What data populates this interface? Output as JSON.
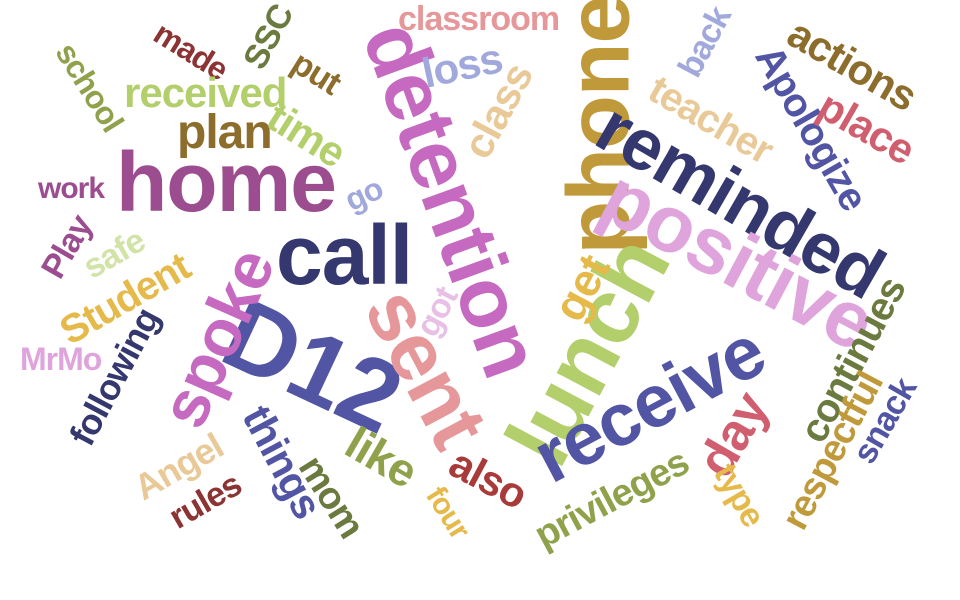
{
  "words": [
    {
      "text": "phone",
      "color": "#c09a3a"
    },
    {
      "text": "detention",
      "color": "#c56ac0"
    },
    {
      "text": "home",
      "color": "#9b4d8f"
    },
    {
      "text": "reminded",
      "color": "#34386e"
    },
    {
      "text": "positive",
      "color": "#dfa4dc"
    },
    {
      "text": "call",
      "color": "#34386e"
    },
    {
      "text": "lunch",
      "color": "#b3cf6b"
    },
    {
      "text": "D12",
      "color": "#5155a3"
    },
    {
      "text": "sent",
      "color": "#e5979a"
    },
    {
      "text": "receive",
      "color": "#5155a3"
    },
    {
      "text": "spoke",
      "color": "#c56ac0"
    },
    {
      "text": "classroom",
      "color": "#e5979a"
    },
    {
      "text": "made",
      "color": "#8c3333"
    },
    {
      "text": "SSC",
      "color": "#6b7a3e"
    },
    {
      "text": "school",
      "color": "#8fa24b"
    },
    {
      "text": "received",
      "color": "#b3cf6b"
    },
    {
      "text": "plan",
      "color": "#8c6d2c"
    },
    {
      "text": "put",
      "color": "#8c6d2c"
    },
    {
      "text": "loss",
      "color": "#a1a8dc"
    },
    {
      "text": "time",
      "color": "#b3cf6b"
    },
    {
      "text": "class",
      "color": "#e9c997"
    },
    {
      "text": "back",
      "color": "#a1a8dc"
    },
    {
      "text": "actions",
      "color": "#8c6d2c"
    },
    {
      "text": "teacher",
      "color": "#e9c997"
    },
    {
      "text": "Apologize",
      "color": "#5155a3"
    },
    {
      "text": "place",
      "color": "#d05e6f"
    },
    {
      "text": "work",
      "color": "#9b4d8f"
    },
    {
      "text": "go",
      "color": "#a1a8dc"
    },
    {
      "text": "Play",
      "color": "#9b4d8f"
    },
    {
      "text": "safe",
      "color": "#d1e3a6"
    },
    {
      "text": "Student",
      "color": "#e5b94a"
    },
    {
      "text": "get",
      "color": "#e5b94a"
    },
    {
      "text": "got",
      "color": "#e8bfe5"
    },
    {
      "text": "MrMo",
      "color": "#dfa4dc"
    },
    {
      "text": "following",
      "color": "#34386e"
    },
    {
      "text": "continues",
      "color": "#6b7a3e"
    },
    {
      "text": "snack",
      "color": "#5155a3"
    },
    {
      "text": "day",
      "color": "#d05e6f"
    },
    {
      "text": "respectful",
      "color": "#c09a3a"
    },
    {
      "text": "things",
      "color": "#5155a3"
    },
    {
      "text": "Angel",
      "color": "#e9c997"
    },
    {
      "text": "like",
      "color": "#8fa24b"
    },
    {
      "text": "mom",
      "color": "#6b7a3e"
    },
    {
      "text": "rules",
      "color": "#8c3333"
    },
    {
      "text": "also",
      "color": "#a83a3a"
    },
    {
      "text": "four",
      "color": "#e5b94a"
    },
    {
      "text": "privileges",
      "color": "#8fa24b"
    },
    {
      "text": "type",
      "color": "#e5b94a"
    }
  ]
}
